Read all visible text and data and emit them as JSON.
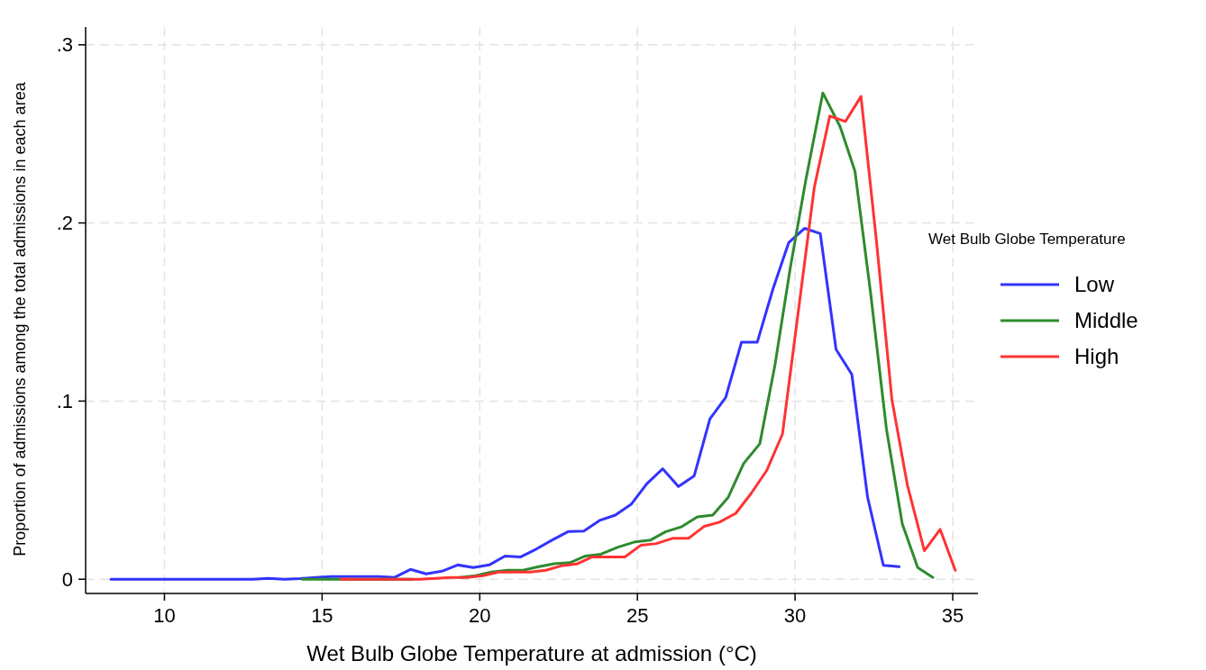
{
  "chart_data": {
    "type": "line",
    "xlabel": "Wet Bulb Globe Temperature at admission (°C)",
    "ylabel": "Proportion of admissions among the total admissions in each area",
    "legend_title": "Wet Bulb Globe Temperature",
    "xlim": [
      7.5,
      35.8
    ],
    "xticks": [
      10,
      15,
      20,
      25,
      30,
      35
    ],
    "ylim": [
      -0.008,
      0.31
    ],
    "yticks": [
      {
        "value": 0,
        "label": "0"
      },
      {
        "value": 0.1,
        "label": ".1"
      },
      {
        "value": 0.2,
        "label": ".2"
      },
      {
        "value": 0.3,
        "label": ".3"
      }
    ],
    "grid": true,
    "legend": "right",
    "line_style": "solid",
    "marker": "none",
    "series": [
      {
        "name": "Low",
        "color": "#3333ff",
        "x": [
          8.3,
          8.8,
          9.3,
          9.8,
          10.3,
          10.8,
          11.3,
          11.8,
          12.3,
          12.8,
          13.3,
          13.8,
          14.3,
          14.8,
          15.3,
          15.8,
          16.3,
          16.8,
          17.3,
          17.8,
          18.3,
          18.8,
          19.3,
          19.8,
          20.3,
          20.8,
          21.3,
          21.8,
          22.3,
          22.8,
          23.3,
          23.8,
          24.3,
          24.8,
          25.3,
          25.8,
          26.3,
          26.8,
          27.3,
          27.8,
          28.3,
          28.8,
          29.3,
          29.8,
          30.3,
          30.8,
          31.3,
          31.8,
          32.3,
          32.8,
          33.3
        ],
        "values": [
          0,
          0,
          0,
          0,
          0,
          0,
          0,
          0,
          0,
          0,
          0.0005,
          0,
          0.0003,
          0.001,
          0.0015,
          0.0015,
          0.0015,
          0.0015,
          0.001,
          0.0055,
          0.003,
          0.0045,
          0.008,
          0.0065,
          0.008,
          0.013,
          0.0125,
          0.017,
          0.022,
          0.0267,
          0.027,
          0.033,
          0.036,
          0.042,
          0.0536,
          0.062,
          0.052,
          0.058,
          0.09,
          0.102,
          0.133,
          0.133,
          0.163,
          0.189,
          0.197,
          0.194,
          0.129,
          0.115,
          0.046,
          0.0078,
          0.007
        ]
      },
      {
        "name": "Middle",
        "color": "#2e8b2e",
        "x": [
          14.37,
          14.87,
          15.37,
          15.87,
          16.37,
          16.87,
          17.37,
          17.87,
          18.37,
          18.87,
          19.37,
          19.87,
          20.37,
          20.87,
          21.37,
          21.87,
          22.36,
          22.86,
          23.35,
          23.84,
          24.38,
          24.93,
          25.42,
          25.9,
          26.41,
          26.9,
          27.39,
          27.88,
          28.37,
          28.88,
          29.36,
          29.85,
          30.34,
          30.88,
          31.43,
          31.9,
          32.4,
          32.9,
          33.4,
          33.89,
          34.37
        ],
        "values": [
          0,
          0,
          0,
          0,
          0,
          0,
          0,
          0,
          null,
          null,
          0.001,
          0.002,
          0.004,
          0.005,
          0.005,
          0.007,
          0.0087,
          0.0093,
          0.013,
          0.014,
          0.018,
          0.021,
          0.022,
          0.0267,
          0.0295,
          0.035,
          0.036,
          0.046,
          0.065,
          0.076,
          0.12,
          0.175,
          0.224,
          0.273,
          0.254,
          0.229,
          0.16,
          0.084,
          0.031,
          0.0065,
          0.001
        ]
      },
      {
        "name": "High",
        "color": "#ff3333",
        "x": [
          15.6,
          16.1,
          16.6,
          17.1,
          17.6,
          18.1,
          18.6,
          19.1,
          19.6,
          20.1,
          20.6,
          21.1,
          21.6,
          22.1,
          22.58,
          23.07,
          23.57,
          24.1,
          24.6,
          25.1,
          25.6,
          26.13,
          26.63,
          27.12,
          27.6,
          28.12,
          28.6,
          29.1,
          29.6,
          30.1,
          30.61,
          31.1,
          31.6,
          32.09,
          32.58,
          33.07,
          33.56,
          34.1,
          34.6,
          35.08
        ],
        "values": [
          0,
          0,
          0,
          0,
          0,
          0,
          0.0005,
          0.001,
          0.001,
          0.002,
          0.004,
          0.004,
          0.004,
          0.005,
          0.0075,
          0.0085,
          0.0125,
          0.0125,
          0.0125,
          0.019,
          0.02,
          0.023,
          0.023,
          0.0297,
          0.032,
          0.037,
          0.048,
          0.061,
          0.0815,
          0.15,
          0.22,
          0.26,
          0.257,
          0.271,
          0.19,
          0.101,
          0.053,
          0.016,
          0.028,
          0.005
        ]
      }
    ]
  }
}
